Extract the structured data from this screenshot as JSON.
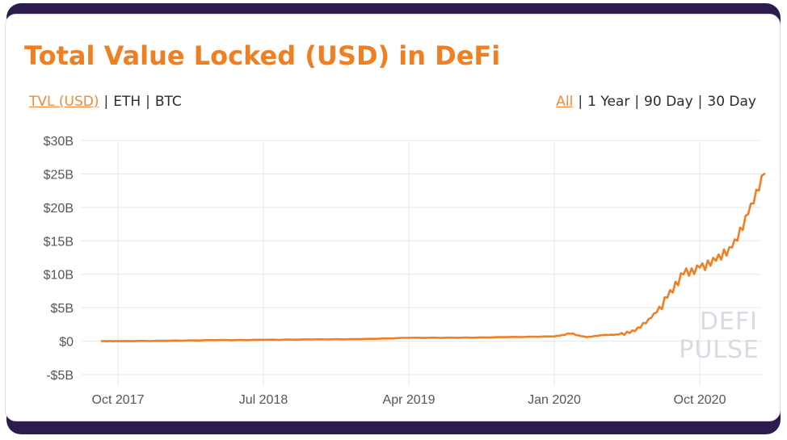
{
  "header": {
    "title": "Total Value Locked (USD) in DeFi"
  },
  "metric_toggle": {
    "options": [
      {
        "label": "TVL (USD)",
        "active": true
      },
      {
        "label": "ETH",
        "active": false
      },
      {
        "label": "BTC",
        "active": false
      }
    ],
    "separator": "|"
  },
  "range_toggle": {
    "options": [
      {
        "label": "All",
        "active": true
      },
      {
        "label": "1 Year",
        "active": false
      },
      {
        "label": "90 Day",
        "active": false
      },
      {
        "label": "30 Day",
        "active": false
      }
    ],
    "separator": "|"
  },
  "watermark": {
    "line1": "DEFI",
    "line2": "PULSE"
  },
  "colors": {
    "accent": "#f07f22",
    "frame": "#2d1b4e",
    "grid": "#e6e6e6",
    "axis_text": "#555555"
  },
  "chart_data": {
    "type": "line",
    "title": "Total Value Locked (USD) in DeFi",
    "xlabel": "",
    "ylabel": "TVL (USD)",
    "ylim": [
      -5,
      30
    ],
    "y_unit": "B USD",
    "y_ticks": [
      "$30B",
      "$25B",
      "$20B",
      "$15B",
      "$10B",
      "$5B",
      "$0",
      "-$5B"
    ],
    "y_tick_values": [
      30,
      25,
      20,
      15,
      10,
      5,
      0,
      -5
    ],
    "x_ticks": [
      "Oct 2017",
      "Jul 2018",
      "Apr 2019",
      "Jan 2020",
      "Oct 2020"
    ],
    "grid": true,
    "legend": null,
    "series": [
      {
        "name": "TVL (USD)",
        "color": "#f07f22",
        "x": [
          "2017-09",
          "2017-10",
          "2018-01",
          "2018-04",
          "2018-07",
          "2018-10",
          "2019-01",
          "2019-04",
          "2019-07",
          "2019-10",
          "2020-01",
          "2020-02",
          "2020-03",
          "2020-04",
          "2020-05",
          "2020-06",
          "2020-07",
          "2020-08",
          "2020-09",
          "2020-10",
          "2020-11",
          "2020-12",
          "2021-01",
          "2021-02"
        ],
        "values": [
          0.0,
          0.0,
          0.05,
          0.15,
          0.2,
          0.25,
          0.3,
          0.5,
          0.5,
          0.6,
          0.7,
          1.1,
          0.6,
          0.9,
          1.0,
          1.5,
          3.5,
          6.5,
          10.0,
          11.0,
          12.0,
          14.0,
          19.0,
          25.0
        ]
      }
    ],
    "annotations": [
      "DEFI PULSE (watermark)"
    ]
  }
}
